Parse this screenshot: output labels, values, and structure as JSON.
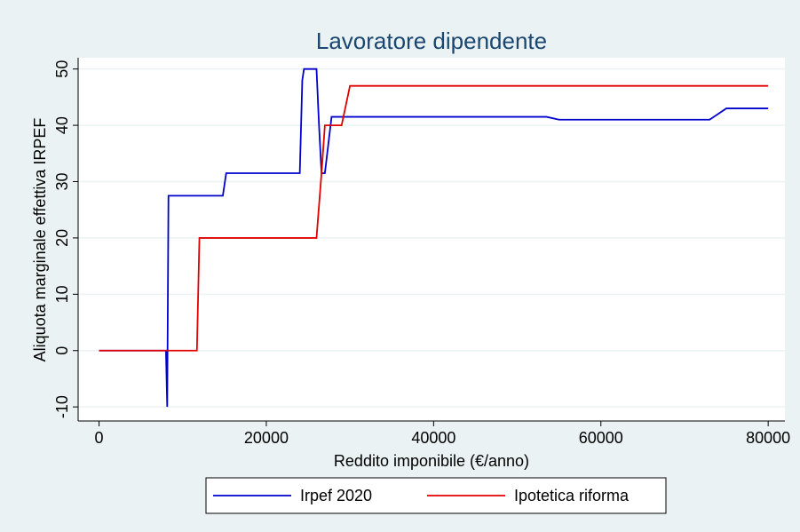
{
  "chart_data": {
    "type": "line",
    "title": "Lavoratore dipendente",
    "x_label": "Reddito imponibile (€/anno)",
    "y_label": "Aliquota marginale effettiva IRPEF",
    "xlim": [
      -2500,
      82000
    ],
    "ylim": [
      -12.5,
      52
    ],
    "xticks": [
      0,
      20000,
      40000,
      60000,
      80000
    ],
    "yticks": [
      -10,
      0,
      10,
      20,
      30,
      40,
      50
    ],
    "grid": true,
    "legend": "bottom",
    "series": [
      {
        "name": "Irpef 2020",
        "color": "#0000cc",
        "x": [
          0,
          8000,
          8150,
          8300,
          14800,
          15200,
          24000,
          24300,
          24500,
          26000,
          26300,
          26600,
          27000,
          27800,
          53500,
          55000,
          73000,
          75000,
          80000
        ],
        "values": [
          0,
          0,
          -10,
          27.5,
          27.5,
          31.5,
          31.5,
          48,
          50,
          50,
          40,
          31.5,
          31.5,
          41.5,
          41.5,
          41,
          41,
          43,
          43
        ]
      },
      {
        "name": "Ipotetica riforma",
        "color": "#e00000",
        "x": [
          0,
          11700,
          12000,
          26000,
          26600,
          27000,
          29000,
          30000,
          80000
        ],
        "values": [
          0,
          0,
          20,
          20,
          31.5,
          40,
          40,
          47,
          47
        ]
      }
    ]
  }
}
